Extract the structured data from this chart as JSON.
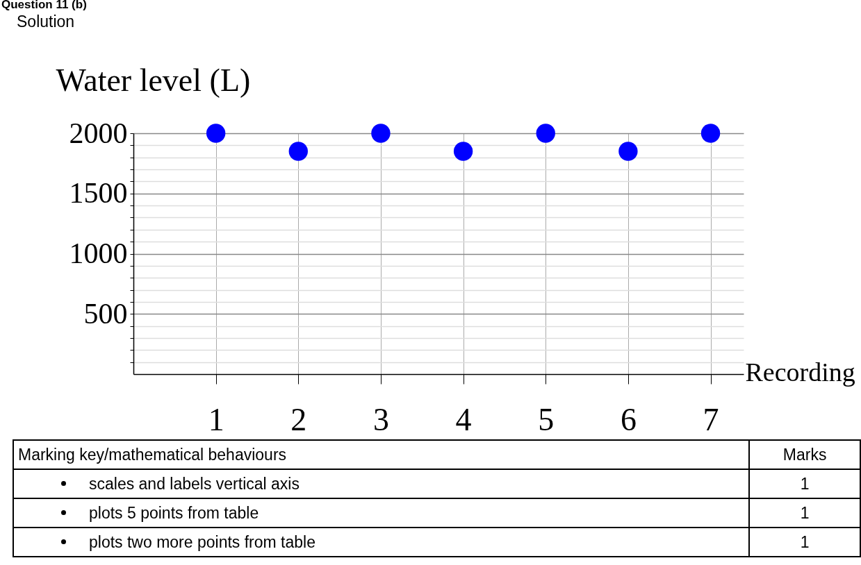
{
  "chart_data": {
    "type": "scatter",
    "xlabel": "Recording",
    "ylabel": "Water level (L)",
    "x": [
      1,
      2,
      3,
      4,
      5,
      6,
      7
    ],
    "series": [
      {
        "color": "#0000ff",
        "values": [
          2000,
          1850,
          2000,
          1850,
          2000,
          1850,
          2000
        ]
      }
    ],
    "marker": "circle",
    "grid": true,
    "legend": false,
    "xlim": [
      0,
      7.4
    ],
    "xticks": [
      1,
      2,
      3,
      4,
      5,
      6,
      7
    ],
    "ylim": [
      0,
      2000
    ],
    "yticks": [
      {
        "value": 100,
        "label": null
      },
      {
        "value": 200,
        "label": null
      },
      {
        "value": 300,
        "label": null
      },
      {
        "value": 400,
        "label": null
      },
      500,
      {
        "value": 600,
        "label": null
      },
      {
        "value": 700,
        "label": null
      },
      {
        "value": 800,
        "label": null
      },
      {
        "value": 900,
        "label": null
      },
      1000,
      {
        "value": 1100,
        "label": null
      },
      {
        "value": 1200,
        "label": null
      },
      {
        "value": 1300,
        "label": null
      },
      {
        "value": 1400,
        "label": null
      },
      1500,
      {
        "value": 1600,
        "label": null
      },
      {
        "value": 1700,
        "label": null
      },
      {
        "value": 1800,
        "label": null
      },
      {
        "value": 1900,
        "label": null
      },
      2000
    ],
    "annotations": [
      "Question 11 (b)",
      "Solution",
      "Marking key/mathematical behaviours",
      "Marks",
      "scales and labels vertical axis",
      "1",
      "plots 5 points from table",
      "1",
      "plots two more points from table",
      "1"
    ]
  }
}
